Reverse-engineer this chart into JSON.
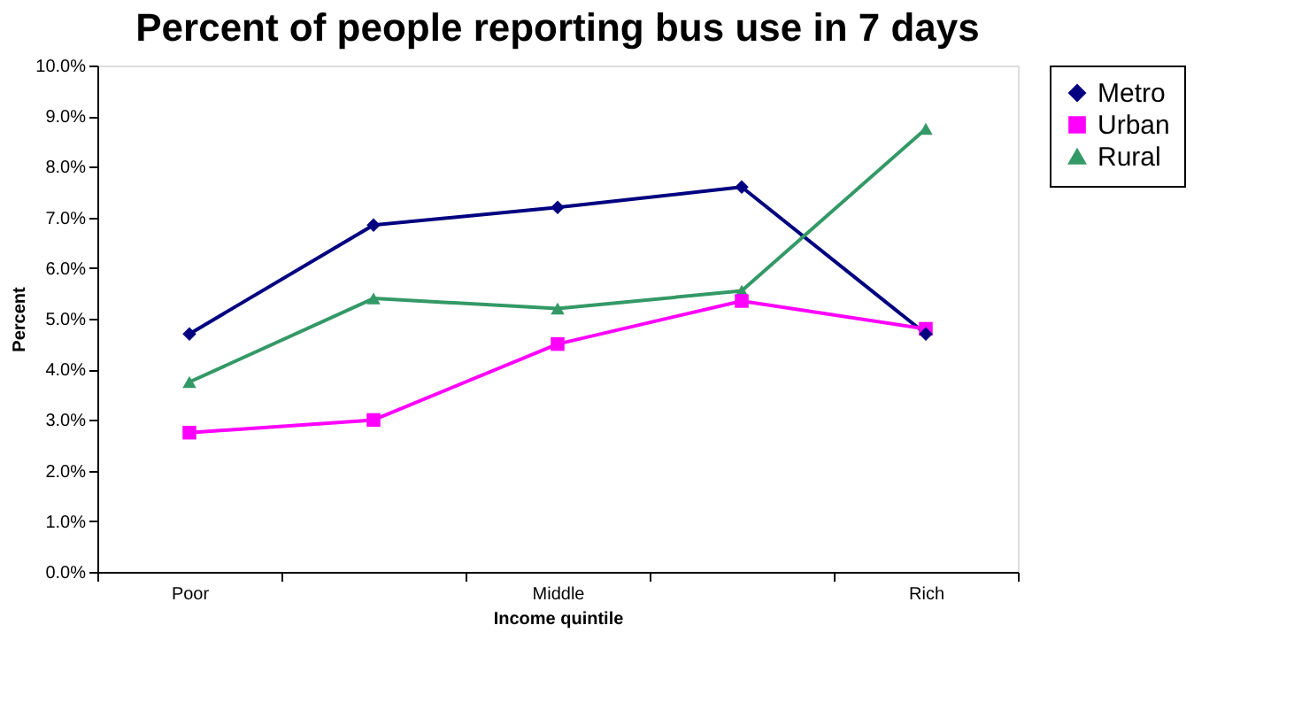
{
  "chart_data": {
    "type": "line",
    "title": "Percent of people reporting bus use in 7 days",
    "xlabel": "Income quintile",
    "ylabel": "Percent",
    "categories": [
      "Poor",
      null,
      "Middle",
      null,
      "Rich"
    ],
    "series": [
      {
        "name": "Metro",
        "color": "#000080",
        "marker": "diamond",
        "values": [
          4.7,
          6.85,
          7.2,
          7.6,
          4.7
        ]
      },
      {
        "name": "Urban",
        "color": "#ff00ff",
        "marker": "square",
        "values": [
          2.75,
          3.0,
          4.5,
          5.35,
          4.8
        ]
      },
      {
        "name": "Rural",
        "color": "#339966",
        "marker": "triangle",
        "values": [
          3.75,
          5.4,
          5.2,
          5.55,
          8.75
        ]
      }
    ],
    "ylim": [
      0,
      10
    ],
    "yticks": [
      {
        "value": 0,
        "label": "0.0%"
      },
      {
        "value": 1,
        "label": "1.0%"
      },
      {
        "value": 2,
        "label": "2.0%"
      },
      {
        "value": 3,
        "label": "3.0%"
      },
      {
        "value": 4,
        "label": "4.0%"
      },
      {
        "value": 5,
        "label": "5.0%"
      },
      {
        "value": 6,
        "label": "6.0%"
      },
      {
        "value": 7,
        "label": "7.0%"
      },
      {
        "value": 8,
        "label": "8.0%"
      },
      {
        "value": 9,
        "label": "9.0%"
      },
      {
        "value": 10,
        "label": "10.0%"
      }
    ],
    "grid": false,
    "legend": "right"
  }
}
